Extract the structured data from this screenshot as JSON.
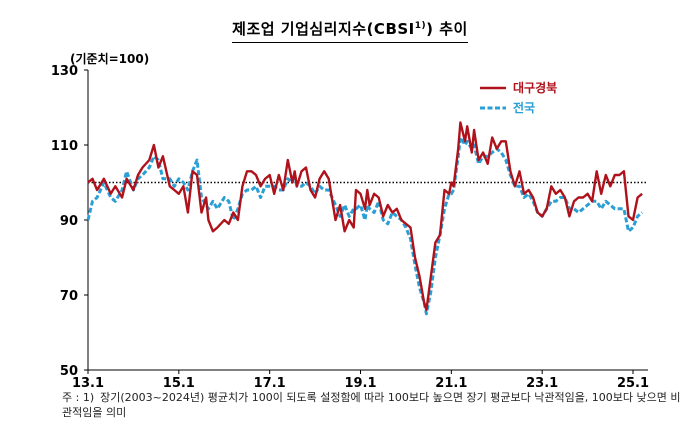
{
  "header": {
    "title": "제조업 기업심리지수(CBSI",
    "title_sup": "1)",
    "title_tail": ") 추이",
    "unit": "(기준치=100)"
  },
  "note": {
    "prefix": "주 : 1)",
    "text": "장기(2003~2024년) 평균치가 100이 되도록 설정함에 따라 100보다 높으면 장기 평균보다 낙관적임을, 100보다 낮으면 비관적임을 의미"
  },
  "chart_data": {
    "type": "line",
    "ylim": [
      50,
      130
    ],
    "yticks": [
      50,
      70,
      90,
      110,
      130
    ],
    "xrange": [
      2013.0,
      2025.33
    ],
    "xticks": [
      {
        "label": "13.1",
        "x": 2013.0
      },
      {
        "label": "15.1",
        "x": 2015.0
      },
      {
        "label": "17.1",
        "x": 2017.0
      },
      {
        "label": "19.1",
        "x": 2019.0
      },
      {
        "label": "21.1",
        "x": 2021.0
      },
      {
        "label": "23.1",
        "x": 2023.0
      },
      {
        "label": "25.1",
        "x": 2025.0
      }
    ],
    "reference_line": 100,
    "legend_position": "top-right",
    "series": [
      {
        "name": "대구경북",
        "color": "#b0121b",
        "style": "solid",
        "points": [
          [
            2013.0,
            100
          ],
          [
            2013.1,
            101
          ],
          [
            2013.2,
            98
          ],
          [
            2013.35,
            101
          ],
          [
            2013.5,
            97
          ],
          [
            2013.6,
            99
          ],
          [
            2013.75,
            96
          ],
          [
            2013.85,
            101
          ],
          [
            2014.0,
            98
          ],
          [
            2014.1,
            102
          ],
          [
            2014.2,
            104
          ],
          [
            2014.35,
            106
          ],
          [
            2014.45,
            110
          ],
          [
            2014.55,
            104
          ],
          [
            2014.65,
            107
          ],
          [
            2014.8,
            99
          ],
          [
            2014.9,
            98
          ],
          [
            2015.0,
            97
          ],
          [
            2015.1,
            99
          ],
          [
            2015.2,
            92
          ],
          [
            2015.3,
            103
          ],
          [
            2015.4,
            102
          ],
          [
            2015.5,
            92
          ],
          [
            2015.6,
            96
          ],
          [
            2015.65,
            90
          ],
          [
            2015.75,
            87
          ],
          [
            2015.85,
            88
          ],
          [
            2016.0,
            90
          ],
          [
            2016.1,
            89
          ],
          [
            2016.2,
            92
          ],
          [
            2016.3,
            90
          ],
          [
            2016.4,
            99
          ],
          [
            2016.5,
            103
          ],
          [
            2016.6,
            103
          ],
          [
            2016.7,
            102
          ],
          [
            2016.8,
            99
          ],
          [
            2016.9,
            101
          ],
          [
            2017.0,
            102
          ],
          [
            2017.1,
            97
          ],
          [
            2017.2,
            102
          ],
          [
            2017.3,
            98
          ],
          [
            2017.4,
            106
          ],
          [
            2017.5,
            100
          ],
          [
            2017.55,
            103
          ],
          [
            2017.6,
            99
          ],
          [
            2017.7,
            103
          ],
          [
            2017.8,
            104
          ],
          [
            2017.9,
            98
          ],
          [
            2018.0,
            96
          ],
          [
            2018.1,
            101
          ],
          [
            2018.2,
            103
          ],
          [
            2018.3,
            101
          ],
          [
            2018.45,
            90
          ],
          [
            2018.55,
            94
          ],
          [
            2018.65,
            87
          ],
          [
            2018.75,
            90
          ],
          [
            2018.85,
            88
          ],
          [
            2018.9,
            98
          ],
          [
            2019.0,
            97
          ],
          [
            2019.1,
            93
          ],
          [
            2019.15,
            98
          ],
          [
            2019.2,
            94
          ],
          [
            2019.3,
            97
          ],
          [
            2019.4,
            96
          ],
          [
            2019.5,
            91
          ],
          [
            2019.6,
            94
          ],
          [
            2019.7,
            92
          ],
          [
            2019.8,
            93
          ],
          [
            2019.9,
            90
          ],
          [
            2020.0,
            89
          ],
          [
            2020.1,
            88
          ],
          [
            2020.2,
            80
          ],
          [
            2020.3,
            75
          ],
          [
            2020.4,
            68
          ],
          [
            2020.45,
            66
          ],
          [
            2020.55,
            75
          ],
          [
            2020.65,
            84
          ],
          [
            2020.75,
            86
          ],
          [
            2020.85,
            98
          ],
          [
            2020.95,
            97
          ],
          [
            2021.0,
            100
          ],
          [
            2021.05,
            99
          ],
          [
            2021.15,
            109
          ],
          [
            2021.2,
            116
          ],
          [
            2021.3,
            111
          ],
          [
            2021.35,
            115
          ],
          [
            2021.45,
            108
          ],
          [
            2021.5,
            114
          ],
          [
            2021.6,
            106
          ],
          [
            2021.7,
            108
          ],
          [
            2021.8,
            105
          ],
          [
            2021.9,
            112
          ],
          [
            2022.0,
            109
          ],
          [
            2022.1,
            111
          ],
          [
            2022.2,
            111
          ],
          [
            2022.3,
            103
          ],
          [
            2022.4,
            99
          ],
          [
            2022.5,
            103
          ],
          [
            2022.6,
            97
          ],
          [
            2022.7,
            98
          ],
          [
            2022.8,
            96
          ],
          [
            2022.9,
            92
          ],
          [
            2023.0,
            91
          ],
          [
            2023.1,
            93
          ],
          [
            2023.2,
            99
          ],
          [
            2023.3,
            97
          ],
          [
            2023.4,
            98
          ],
          [
            2023.5,
            96
          ],
          [
            2023.6,
            91
          ],
          [
            2023.7,
            95
          ],
          [
            2023.8,
            96
          ],
          [
            2023.9,
            96
          ],
          [
            2024.0,
            97
          ],
          [
            2024.1,
            95
          ],
          [
            2024.2,
            103
          ],
          [
            2024.3,
            97
          ],
          [
            2024.4,
            102
          ],
          [
            2024.5,
            99
          ],
          [
            2024.6,
            102
          ],
          [
            2024.7,
            102
          ],
          [
            2024.8,
            103
          ],
          [
            2024.9,
            91
          ],
          [
            2025.0,
            90
          ],
          [
            2025.1,
            96
          ],
          [
            2025.2,
            97
          ]
        ]
      },
      {
        "name": "전국",
        "color": "#2a9fd6",
        "style": "dashed",
        "points": [
          [
            2013.0,
            90
          ],
          [
            2013.1,
            95
          ],
          [
            2013.2,
            96
          ],
          [
            2013.35,
            100
          ],
          [
            2013.5,
            96
          ],
          [
            2013.6,
            95
          ],
          [
            2013.75,
            98
          ],
          [
            2013.85,
            103
          ],
          [
            2014.0,
            98
          ],
          [
            2014.1,
            101
          ],
          [
            2014.2,
            102
          ],
          [
            2014.35,
            104
          ],
          [
            2014.45,
            107
          ],
          [
            2014.55,
            106
          ],
          [
            2014.65,
            101
          ],
          [
            2014.8,
            101
          ],
          [
            2014.9,
            99
          ],
          [
            2015.0,
            101
          ],
          [
            2015.1,
            100
          ],
          [
            2015.2,
            98
          ],
          [
            2015.3,
            103
          ],
          [
            2015.4,
            106
          ],
          [
            2015.5,
            96
          ],
          [
            2015.6,
            94
          ],
          [
            2015.65,
            93
          ],
          [
            2015.75,
            95
          ],
          [
            2015.85,
            93
          ],
          [
            2016.0,
            96
          ],
          [
            2016.1,
            95
          ],
          [
            2016.2,
            90
          ],
          [
            2016.3,
            93
          ],
          [
            2016.4,
            97
          ],
          [
            2016.5,
            98
          ],
          [
            2016.6,
            98
          ],
          [
            2016.7,
            99
          ],
          [
            2016.8,
            96
          ],
          [
            2016.9,
            99
          ],
          [
            2017.0,
            99
          ],
          [
            2017.1,
            99
          ],
          [
            2017.2,
            98
          ],
          [
            2017.3,
            98
          ],
          [
            2017.4,
            101
          ],
          [
            2017.5,
            100
          ],
          [
            2017.55,
            102
          ],
          [
            2017.6,
            99
          ],
          [
            2017.7,
            99
          ],
          [
            2017.8,
            100
          ],
          [
            2017.9,
            99
          ],
          [
            2018.0,
            97
          ],
          [
            2018.1,
            99
          ],
          [
            2018.2,
            98
          ],
          [
            2018.3,
            98
          ],
          [
            2018.45,
            94
          ],
          [
            2018.55,
            91
          ],
          [
            2018.65,
            94
          ],
          [
            2018.75,
            91
          ],
          [
            2018.85,
            93
          ],
          [
            2018.9,
            93
          ],
          [
            2019.0,
            94
          ],
          [
            2019.1,
            90
          ],
          [
            2019.15,
            94
          ],
          [
            2019.2,
            93
          ],
          [
            2019.3,
            92
          ],
          [
            2019.4,
            95
          ],
          [
            2019.5,
            90
          ],
          [
            2019.6,
            89
          ],
          [
            2019.7,
            92
          ],
          [
            2019.8,
            91
          ],
          [
            2019.9,
            90
          ],
          [
            2020.0,
            88
          ],
          [
            2020.1,
            85
          ],
          [
            2020.2,
            78
          ],
          [
            2020.3,
            72
          ],
          [
            2020.4,
            68
          ],
          [
            2020.45,
            65
          ],
          [
            2020.55,
            71
          ],
          [
            2020.65,
            80
          ],
          [
            2020.75,
            86
          ],
          [
            2020.85,
            93
          ],
          [
            2020.95,
            97
          ],
          [
            2021.0,
            97
          ],
          [
            2021.05,
            98
          ],
          [
            2021.15,
            107
          ],
          [
            2021.2,
            112
          ],
          [
            2021.3,
            110
          ],
          [
            2021.35,
            111
          ],
          [
            2021.45,
            109
          ],
          [
            2021.5,
            110
          ],
          [
            2021.6,
            105
          ],
          [
            2021.7,
            107
          ],
          [
            2021.8,
            107
          ],
          [
            2021.9,
            108
          ],
          [
            2022.0,
            109
          ],
          [
            2022.1,
            108
          ],
          [
            2022.2,
            106
          ],
          [
            2022.3,
            102
          ],
          [
            2022.4,
            99
          ],
          [
            2022.5,
            99
          ],
          [
            2022.6,
            96
          ],
          [
            2022.7,
            97
          ],
          [
            2022.8,
            95
          ],
          [
            2022.9,
            92
          ],
          [
            2023.0,
            91
          ],
          [
            2023.1,
            93
          ],
          [
            2023.2,
            95
          ],
          [
            2023.3,
            95
          ],
          [
            2023.4,
            96
          ],
          [
            2023.5,
            96
          ],
          [
            2023.6,
            93
          ],
          [
            2023.7,
            93
          ],
          [
            2023.8,
            92
          ],
          [
            2023.9,
            93
          ],
          [
            2024.0,
            94
          ],
          [
            2024.1,
            95
          ],
          [
            2024.2,
            95
          ],
          [
            2024.3,
            93
          ],
          [
            2024.4,
            95
          ],
          [
            2024.5,
            94
          ],
          [
            2024.6,
            93
          ],
          [
            2024.7,
            93
          ],
          [
            2024.8,
            93
          ],
          [
            2024.9,
            87
          ],
          [
            2025.0,
            88
          ],
          [
            2025.1,
            91
          ],
          [
            2025.2,
            92
          ]
        ]
      }
    ]
  }
}
